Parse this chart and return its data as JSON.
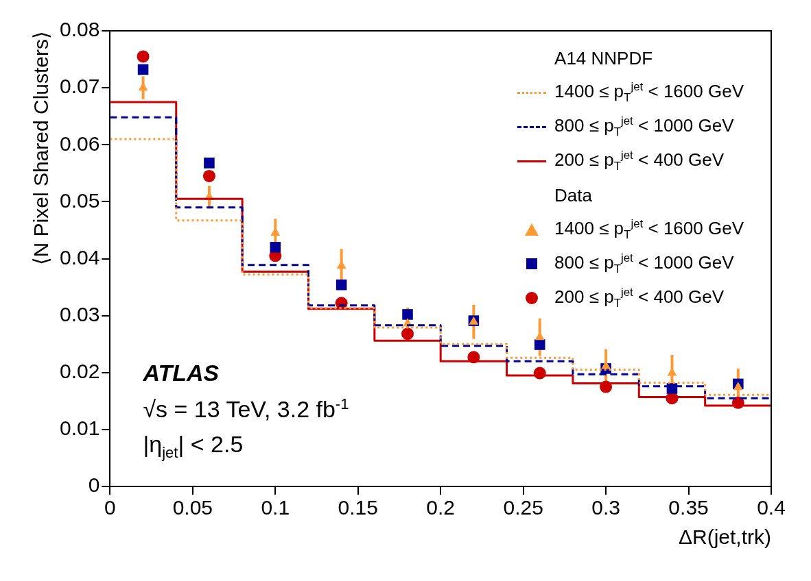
{
  "chart_data": {
    "type": "step",
    "xlabel": "ΔR(jet,trk)",
    "ylabel": "⟨N Pixel Shared Clusters⟩",
    "legend_title": "A14 NNPDF",
    "annotations": [
      "ATLAS",
      "√s = 13 TeV, 3.2 fb$^{-1}$",
      "|η$_{jet}$| < 2.5",
      "Data"
    ],
    "xlim": [
      0,
      0.4
    ],
    "xticks": [
      0,
      0.05,
      0.1,
      0.15,
      0.2,
      0.25,
      0.3,
      0.35,
      0.4
    ],
    "ylim": [
      0,
      0.08
    ],
    "yticks": [
      0,
      0.01,
      0.02,
      0.03,
      0.04,
      0.05,
      0.06,
      0.07,
      0.08
    ],
    "grid": false,
    "legend": "top right",
    "series": [
      {
        "name": "1400 ≤ p$_{T}$$^{jet}$ < 1600 GeV",
        "color": "#ff9933",
        "line_style": "dotted",
        "marker": "none",
        "x": [
          0,
          0.04,
          0.08,
          0.12,
          0.16,
          0.2,
          0.24,
          0.28,
          0.32,
          0.36,
          0.4
        ],
        "values": [
          0.061,
          0.0467,
          0.0372,
          0.0313,
          0.0279,
          0.025,
          0.0226,
          0.0205,
          0.0182,
          0.0161,
          0.0161
        ]
      },
      {
        "name": "800 ≤ p$_{T}$$^{jet}$ < 1000 GeV",
        "color": "#000099",
        "line_style": "dashed",
        "marker": "none",
        "x": [
          0,
          0.04,
          0.08,
          0.12,
          0.16,
          0.2,
          0.24,
          0.28,
          0.32,
          0.36,
          0.4
        ],
        "values": [
          0.0648,
          0.049,
          0.0389,
          0.0318,
          0.0283,
          0.0247,
          0.022,
          0.0197,
          0.0176,
          0.0155,
          0.0155
        ]
      },
      {
        "name": "200 ≤ p$_{T}$$^{jet}$ < 400 GeV",
        "color": "#cc0000",
        "line_style": "solid",
        "marker": "none",
        "x": [
          0,
          0.04,
          0.08,
          0.12,
          0.16,
          0.2,
          0.24,
          0.28,
          0.32,
          0.36,
          0.4
        ],
        "values": [
          0.0675,
          0.0505,
          0.0377,
          0.0312,
          0.0256,
          0.022,
          0.0195,
          0.0181,
          0.0157,
          0.0142,
          0.0142
        ]
      },
      {
        "name": "1400 ≤ p$_{T}$$^{jet}$ < 1600 GeV",
        "type": "scatter",
        "color": "#ff9933",
        "marker": "triangle",
        "x": [
          0.02,
          0.06,
          0.1,
          0.14,
          0.18,
          0.22,
          0.26,
          0.3,
          0.34,
          0.38
        ],
        "values": [
          0.07,
          0.0508,
          0.0445,
          0.0387,
          0.0286,
          0.0289,
          0.0262,
          0.0211,
          0.0199,
          0.0174
        ],
        "errors": [
          0.002,
          0.002,
          0.0025,
          0.003,
          0.0028,
          0.003,
          0.0033,
          0.003,
          0.0032,
          0.0033
        ]
      },
      {
        "name": "800 ≤ p$_{T}$$^{jet}$ < 1000 GeV",
        "type": "scatter",
        "color": "#000099",
        "marker": "square",
        "x": [
          0.02,
          0.06,
          0.1,
          0.14,
          0.18,
          0.22,
          0.26,
          0.3,
          0.34,
          0.38
        ],
        "values": [
          0.0732,
          0.0568,
          0.042,
          0.0354,
          0.0302,
          0.0291,
          0.0249,
          0.0207,
          0.0172,
          0.018
        ]
      },
      {
        "name": "200 ≤ p$_{T}$$^{jet}$ < 400 GeV",
        "type": "scatter",
        "color": "#cc0000",
        "marker": "circle",
        "x": [
          0.02,
          0.06,
          0.1,
          0.14,
          0.18,
          0.22,
          0.26,
          0.3,
          0.34,
          0.38
        ],
        "values": [
          0.0755,
          0.0545,
          0.0405,
          0.0322,
          0.0268,
          0.0227,
          0.0199,
          0.0175,
          0.0155,
          0.0147
        ]
      }
    ]
  }
}
